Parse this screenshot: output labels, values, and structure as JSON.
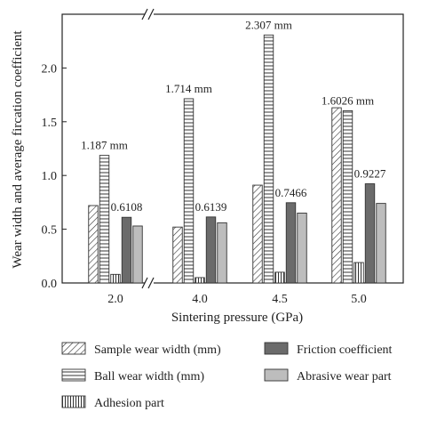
{
  "chart_data": {
    "type": "bar",
    "title": "",
    "xlabel": "Sintering pressure (GPa)",
    "ylabel": "Wear width and average fircation coefficient",
    "categories": [
      "2.0",
      "4.0",
      "4.5",
      "5.0"
    ],
    "ylim": [
      0,
      2.5
    ],
    "yticks": [
      "0.0",
      "0.5",
      "1.0",
      "1.5",
      "2.0"
    ],
    "axis_break": true,
    "grid": false,
    "legend_position": "bottom",
    "series": [
      {
        "name": "Sample wear width (mm)",
        "values": [
          0.72,
          0.52,
          0.91,
          1.63
        ],
        "pattern": "diagonal",
        "color": "#ffffff"
      },
      {
        "name": "Ball wear width (mm)",
        "values": [
          1.187,
          1.714,
          2.307,
          1.6026
        ],
        "pattern": "horizontal",
        "color": "#ffffff"
      },
      {
        "name": "Adhesion part",
        "values": [
          0.08,
          0.05,
          0.1,
          0.19
        ],
        "pattern": "vertical",
        "color": "#ffffff"
      },
      {
        "name": "Friction coefficient",
        "values": [
          0.6108,
          0.6139,
          0.7466,
          0.9227
        ],
        "pattern": "solid",
        "color": "#6b6b6b"
      },
      {
        "name": "Abrasive wear part",
        "values": [
          0.53,
          0.56,
          0.65,
          0.74
        ],
        "pattern": "solid",
        "color": "#bdbdbd"
      }
    ],
    "annotations": [
      {
        "text": "1.187 mm",
        "category": "2.0",
        "series": "Ball wear width (mm)"
      },
      {
        "text": "0.6108",
        "category": "2.0",
        "series": "Friction coefficient"
      },
      {
        "text": "1.714 mm",
        "category": "4.0",
        "series": "Ball wear width (mm)"
      },
      {
        "text": "0.6139",
        "category": "4.0",
        "series": "Friction coefficient"
      },
      {
        "text": "2.307 mm",
        "category": "4.5",
        "series": "Ball wear width (mm)"
      },
      {
        "text": "0.7466",
        "category": "4.5",
        "series": "Friction coefficient"
      },
      {
        "text": "1.6026 mm",
        "category": "5.0",
        "series": "Ball wear width (mm)"
      },
      {
        "text": "0.9227",
        "category": "5.0",
        "series": "Friction coefficient"
      }
    ]
  }
}
